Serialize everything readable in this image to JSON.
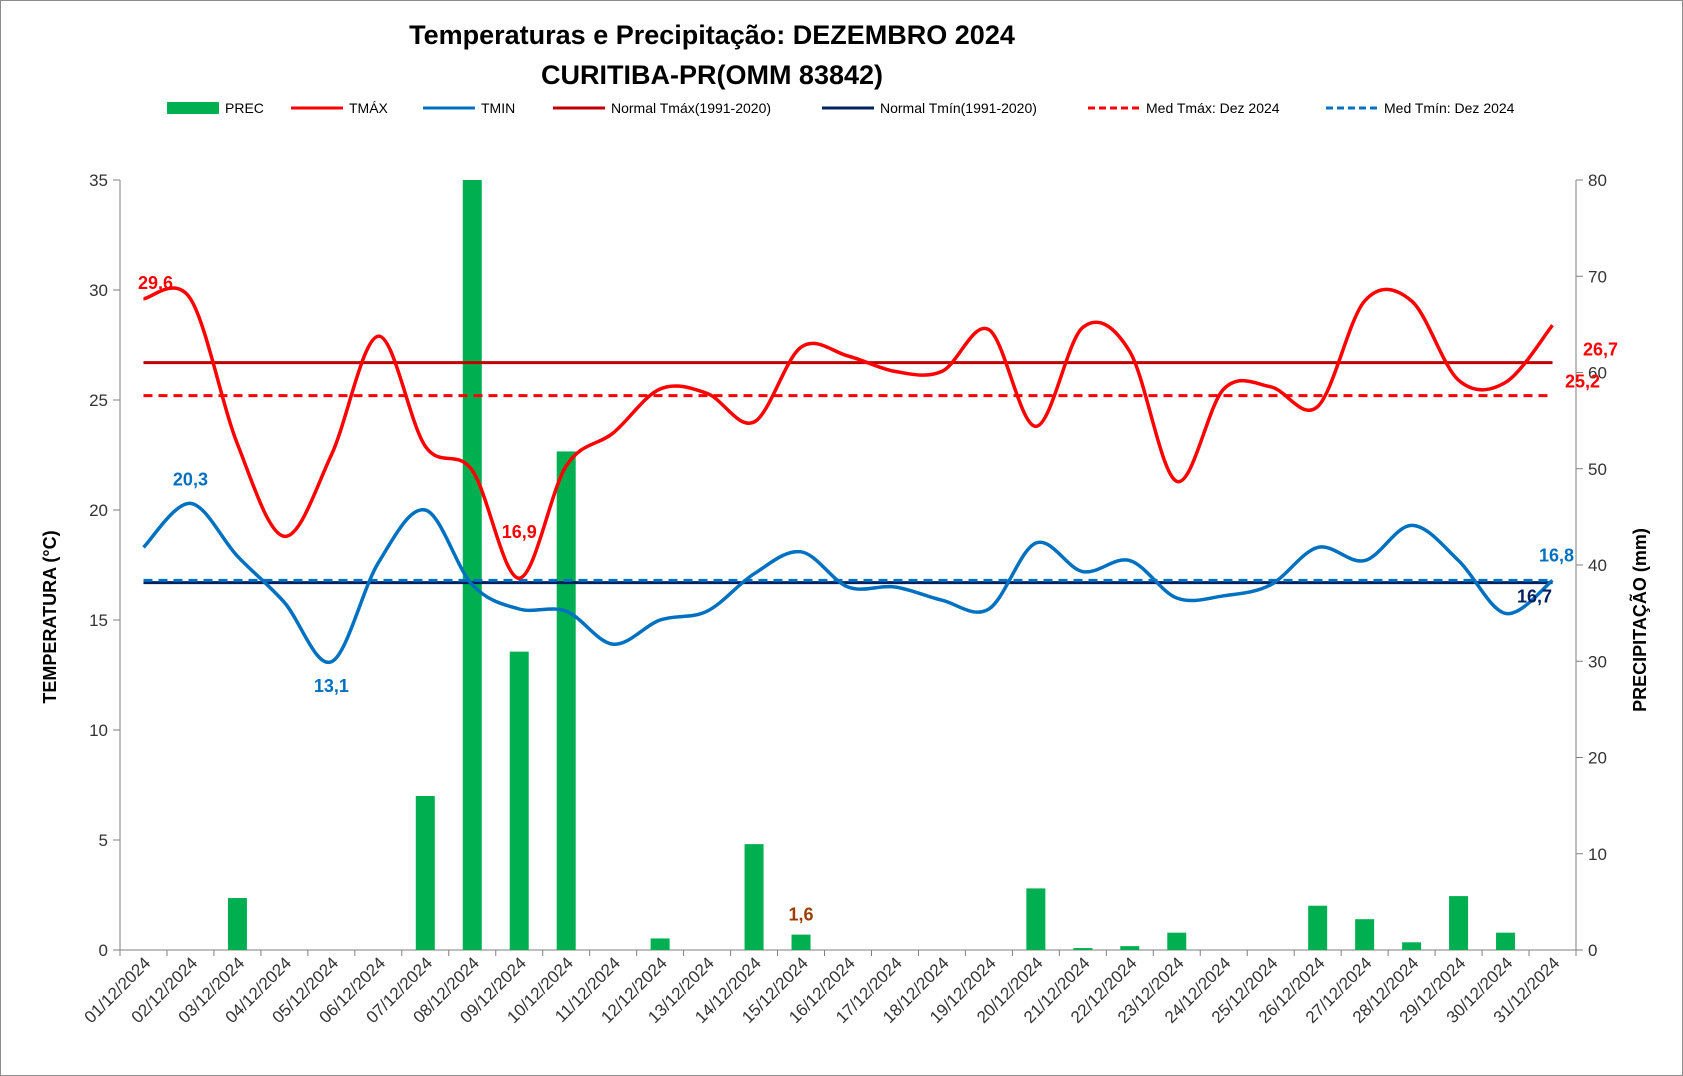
{
  "chart_data": {
    "type": "bar",
    "title": "Temperaturas e Precipitação: DEZEMBRO 2024",
    "subtitle": "CURITIBA-PR(OMM 83842)",
    "ylabel_left": "TEMPERATURA  (°C)",
    "ylabel_right": "PRECIPITAÇÃO  (mm)",
    "ylim_left": [
      0,
      35
    ],
    "yticks_left": [
      0,
      5,
      10,
      15,
      20,
      25,
      30,
      35
    ],
    "ylim_right": [
      0,
      80
    ],
    "yticks_right": [
      0,
      10,
      20,
      30,
      40,
      50,
      60,
      70,
      80
    ],
    "categories": [
      "01/12/2024",
      "02/12/2024",
      "03/12/2024",
      "04/12/2024",
      "05/12/2024",
      "06/12/2024",
      "07/12/2024",
      "08/12/2024",
      "09/12/2024",
      "10/12/2024",
      "11/12/2024",
      "12/12/2024",
      "13/12/2024",
      "14/12/2024",
      "15/12/2024",
      "16/12/2024",
      "17/12/2024",
      "18/12/2024",
      "19/12/2024",
      "20/12/2024",
      "21/12/2024",
      "22/12/2024",
      "23/12/2024",
      "24/12/2024",
      "25/12/2024",
      "26/12/2024",
      "27/12/2024",
      "28/12/2024",
      "29/12/2024",
      "30/12/2024",
      "31/12/2024"
    ],
    "legend": [
      "PREC",
      "TMÁX",
      "TMIN",
      "Normal Tmáx(1991-2020)",
      "Normal Tmín(1991-2020)",
      "Med Tmáx: Dez 2024",
      "Med Tmín: Dez 2024"
    ],
    "series": [
      {
        "name": "PREC",
        "kind": "bar",
        "axis": "right",
        "color": "#00b050",
        "values": [
          0,
          0,
          5.4,
          0,
          0,
          0,
          16,
          80,
          31,
          51.8,
          0,
          1.2,
          0,
          11,
          1.6,
          0,
          0,
          0,
          0,
          6.4,
          0.2,
          0.4,
          1.8,
          0,
          0,
          4.6,
          3.2,
          0.8,
          5.6,
          1.8,
          0
        ]
      },
      {
        "name": "TMÁX",
        "kind": "line",
        "axis": "left",
        "color": "#ff0000",
        "values": [
          29.6,
          29.6,
          23.0,
          18.8,
          22.5,
          27.9,
          22.9,
          21.8,
          16.9,
          22.0,
          23.5,
          25.5,
          25.3,
          24.0,
          27.4,
          27.0,
          26.3,
          26.3,
          28.2,
          23.8,
          28.3,
          27.2,
          21.3,
          25.5,
          25.6,
          24.7,
          29.5,
          29.5,
          25.9,
          25.8,
          28.4
        ]
      },
      {
        "name": "TMIN",
        "kind": "line",
        "axis": "left",
        "color": "#0070c0",
        "values": [
          18.3,
          20.3,
          17.9,
          15.8,
          13.1,
          17.6,
          20.0,
          16.6,
          15.5,
          15.4,
          13.9,
          15.0,
          15.4,
          17.1,
          18.1,
          16.5,
          16.5,
          15.9,
          15.5,
          18.5,
          17.2,
          17.7,
          16.0,
          16.1,
          16.6,
          18.3,
          17.7,
          19.3,
          17.7,
          15.3,
          16.8
        ]
      },
      {
        "name": "Normal Tmáx(1991-2020)",
        "kind": "hline",
        "axis": "left",
        "color": "#c00000",
        "value": 26.7
      },
      {
        "name": "Normal Tmín(1991-2020)",
        "kind": "hline",
        "axis": "left",
        "color": "#002060",
        "value": 16.7
      },
      {
        "name": "Med Tmáx: Dez 2024",
        "kind": "hline-dashed",
        "axis": "left",
        "color": "#ff0000",
        "value": 25.2
      },
      {
        "name": "Med Tmín: Dez 2024",
        "kind": "hline-dashed",
        "axis": "left",
        "color": "#0070c0",
        "value": 16.8
      }
    ],
    "annotations": [
      {
        "text": "29,6",
        "color": "#ff0000",
        "day": 1,
        "value": 29.6
      },
      {
        "text": "20,3",
        "color": "#0070c0",
        "day": 2,
        "value": 20.3
      },
      {
        "text": "13,1",
        "color": "#0070c0",
        "day": 5,
        "value": 13.1
      },
      {
        "text": "16,9",
        "color": "#ff0000",
        "day": 9,
        "value": 16.9
      },
      {
        "text": "1,6",
        "color": "#9c3c00",
        "day": 15,
        "value": 1.6
      },
      {
        "text": "26,7",
        "color": "#ff0000",
        "day": 31,
        "value": 26.7
      },
      {
        "text": "25,2",
        "color": "#ff0000",
        "day": 31,
        "value": 25.2
      },
      {
        "text": "16,8",
        "color": "#0070c0",
        "day": 31,
        "value": 16.8
      },
      {
        "text": "16,7",
        "color": "#002060",
        "day": 31,
        "value": 16.7
      }
    ]
  }
}
